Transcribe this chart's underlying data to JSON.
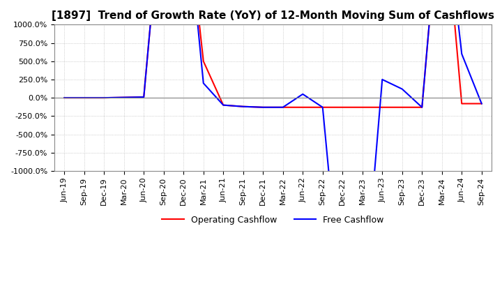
{
  "title": "[1897]  Trend of Growth Rate (YoY) of 12-Month Moving Sum of Cashflows",
  "ylim": [
    -1000,
    1000
  ],
  "yticks": [
    -1000,
    -750,
    -500,
    -250,
    0,
    250,
    500,
    750,
    1000
  ],
  "ytick_labels": [
    "-1000.0%",
    "-750.0%",
    "-500.0%",
    "-250.0%",
    "0.0%",
    "250.0%",
    "500.0%",
    "750.0%",
    "1000.0%"
  ],
  "x_labels": [
    "Jun-19",
    "Sep-19",
    "Dec-19",
    "Mar-20",
    "Jun-20",
    "Sep-20",
    "Dec-20",
    "Mar-21",
    "Jun-21",
    "Sep-21",
    "Dec-21",
    "Mar-22",
    "Jun-22",
    "Sep-22",
    "Dec-22",
    "Mar-23",
    "Jun-23",
    "Sep-23",
    "Dec-23",
    "Mar-24",
    "Jun-24",
    "Sep-24"
  ],
  "operating_color": "#ff0000",
  "free_color": "#0000ff",
  "background_color": "#ffffff",
  "grid_color": "#b0b0b0",
  "legend_labels": [
    "Operating Cashflow",
    "Free Cashflow"
  ],
  "title_fontsize": 11,
  "tick_fontsize": 8,
  "legend_fontsize": 9,
  "operating_cashflow": [
    0,
    0,
    0,
    5,
    10,
    3000,
    3000,
    500,
    -100,
    -120,
    -130,
    -130,
    -130,
    -130,
    -130,
    -130,
    -130,
    -130,
    -130,
    3000,
    -80,
    -80
  ],
  "free_cashflow": [
    0,
    0,
    0,
    5,
    10,
    3000,
    3000,
    200,
    -100,
    -120,
    -130,
    -130,
    50,
    -130,
    -3000,
    -3000,
    250,
    120,
    -130,
    3000,
    600,
    -80
  ]
}
